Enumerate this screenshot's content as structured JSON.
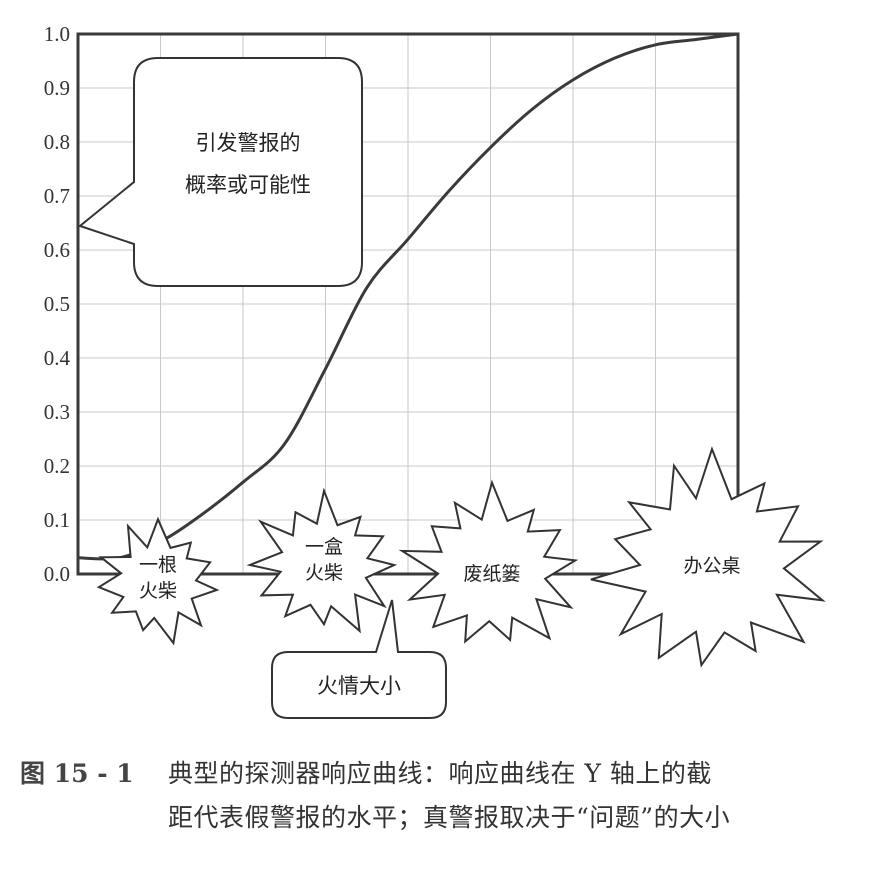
{
  "chart_data": {
    "type": "line",
    "title": "",
    "xlabel": "火情大小",
    "ylabel": "引发警报的概率或可能性",
    "ylim": [
      0,
      1.0
    ],
    "yticks": [
      "0.0",
      "0.1",
      "0.2",
      "0.3",
      "0.4",
      "0.5",
      "0.6",
      "0.7",
      "0.8",
      "0.9",
      "1.0"
    ],
    "grid": true,
    "xlim": [
      0,
      8
    ],
    "series": [
      {
        "x": [
          0,
          0.5,
          1.0,
          1.5,
          2.0,
          2.5,
          3.0,
          3.5,
          4.0,
          4.5,
          5.0,
          5.5,
          6.0,
          6.5,
          7.0,
          7.5,
          8.0
        ],
        "y": [
          0.03,
          0.03,
          0.06,
          0.11,
          0.17,
          0.24,
          0.38,
          0.53,
          0.62,
          0.71,
          0.79,
          0.86,
          0.915,
          0.955,
          0.98,
          0.99,
          1.0
        ]
      }
    ],
    "annotations": [
      {
        "id": "bubble",
        "text_lines": [
          "引发警报的",
          "概率或可能性"
        ]
      },
      {
        "id": "xlabel_box",
        "text": "火情大小"
      },
      {
        "id": "burst1",
        "text_lines": [
          "一根",
          "火柴"
        ]
      },
      {
        "id": "burst2",
        "text_lines": [
          "一盒",
          "火柴"
        ]
      },
      {
        "id": "burst3",
        "text_lines": [
          "废纸篓"
        ]
      },
      {
        "id": "burst4",
        "text_lines": [
          "办公桌"
        ]
      }
    ]
  },
  "caption": {
    "label": "图 15 - 1",
    "line1": "典型的探测器响应曲线：响应曲线在 Y 轴上的截",
    "line2": "距代表假警报的水平；真警报取决于“问题”的大小"
  },
  "colors": {
    "line": "#3a3a3a",
    "grid": "#c8c8c8",
    "frame": "#3a3a3a"
  }
}
